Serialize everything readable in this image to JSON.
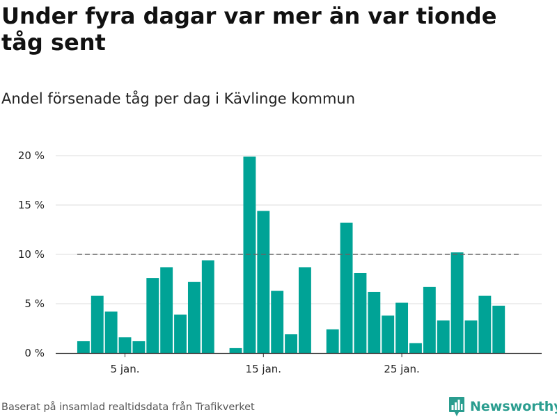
{
  "title": "Under fyra dagar var mer än var tionde tåg sent",
  "subtitle": "Andel försenade tåg per dag i Kävlinge kommun",
  "source": "Baserat på insamlad realtidsdata från Trafikverket",
  "brand": {
    "name": "Newsworthy",
    "icon": "newsworthy-logo-icon"
  },
  "colors": {
    "bar": "#00a396",
    "grid": "#dddddd",
    "reference_line": "#666666",
    "axis": "#333333",
    "text": "#111111",
    "brand": "#2a9d8f"
  },
  "chart_data": {
    "type": "bar",
    "title": "Under fyra dagar var mer än var tionde tåg sent",
    "subtitle": "Andel försenade tåg per dag i Kävlinge kommun",
    "xlabel": "",
    "ylabel": "",
    "x_unit": "day of January",
    "y_unit": "%",
    "ylim": [
      0,
      20
    ],
    "yticks": [
      {
        "value": 0,
        "label": "0 %"
      },
      {
        "value": 5,
        "label": "5 %"
      },
      {
        "value": 10,
        "label": "10 %"
      },
      {
        "value": 15,
        "label": "15 %"
      },
      {
        "value": 20,
        "label": "20 %"
      }
    ],
    "xticks": [
      {
        "day": 5,
        "label": "5 jan."
      },
      {
        "day": 15,
        "label": "15 jan."
      },
      {
        "day": 25,
        "label": "25 jan."
      }
    ],
    "grid": true,
    "reference_line": {
      "value": 10,
      "style": "dashed",
      "from_day": 2,
      "to_day": 33
    },
    "x_range": [
      1,
      34
    ],
    "points": [
      {
        "day": 2,
        "value": 1.2
      },
      {
        "day": 3,
        "value": 5.8
      },
      {
        "day": 4,
        "value": 4.2
      },
      {
        "day": 5,
        "value": 1.6
      },
      {
        "day": 6,
        "value": 1.2
      },
      {
        "day": 7,
        "value": 7.6
      },
      {
        "day": 8,
        "value": 8.7
      },
      {
        "day": 9,
        "value": 3.9
      },
      {
        "day": 10,
        "value": 7.2
      },
      {
        "day": 11,
        "value": 9.4
      },
      {
        "day": 13,
        "value": 0.5
      },
      {
        "day": 14,
        "value": 19.9
      },
      {
        "day": 15,
        "value": 14.4
      },
      {
        "day": 16,
        "value": 6.3
      },
      {
        "day": 17,
        "value": 1.9
      },
      {
        "day": 18,
        "value": 8.7
      },
      {
        "day": 20,
        "value": 2.4
      },
      {
        "day": 21,
        "value": 13.2
      },
      {
        "day": 22,
        "value": 8.1
      },
      {
        "day": 23,
        "value": 6.2
      },
      {
        "day": 24,
        "value": 3.8
      },
      {
        "day": 25,
        "value": 5.1
      },
      {
        "day": 26,
        "value": 1.0
      },
      {
        "day": 27,
        "value": 6.7
      },
      {
        "day": 28,
        "value": 3.3
      },
      {
        "day": 29,
        "value": 10.2
      },
      {
        "day": 30,
        "value": 3.3
      },
      {
        "day": 31,
        "value": 5.8
      },
      {
        "day": 32,
        "value": 4.8
      }
    ]
  }
}
